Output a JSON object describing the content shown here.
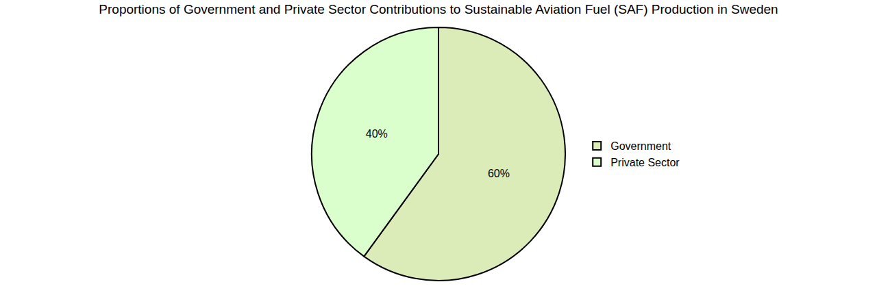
{
  "chart_data": {
    "type": "pie",
    "title": "Proportions of Government and Private Sector Contributions to Sustainable Aviation Fuel (SAF) Production in Sweden",
    "categories": [
      "Government",
      "Private Sector"
    ],
    "values": [
      60,
      40
    ],
    "value_labels": [
      "60%",
      "40%"
    ],
    "colors": [
      "#dcecb8",
      "#dbffcc"
    ],
    "data_labels": true,
    "legend": "right"
  }
}
